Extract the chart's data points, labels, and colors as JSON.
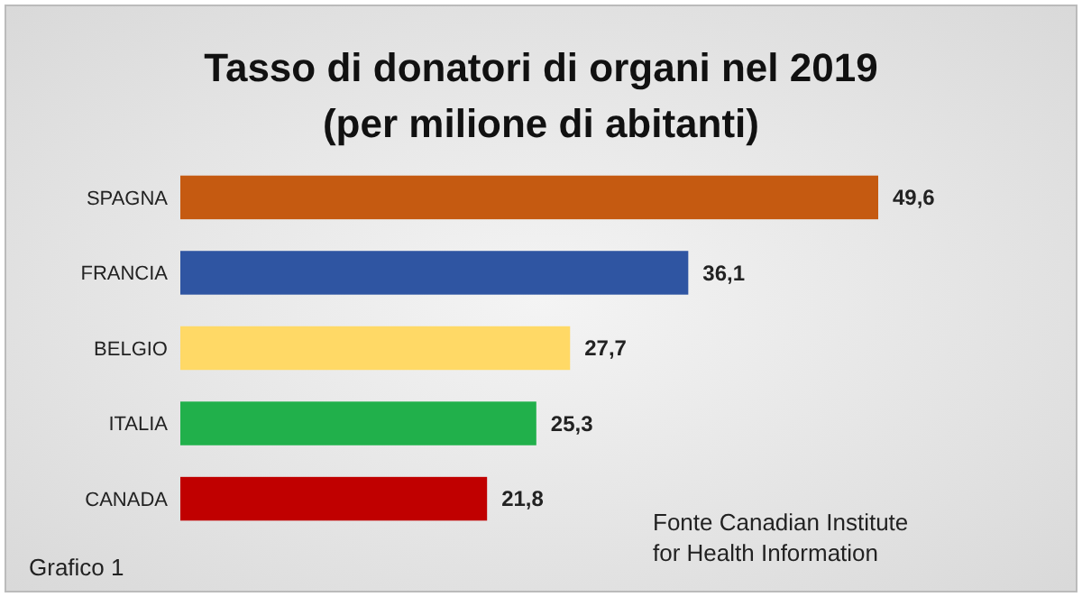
{
  "chart_data": {
    "type": "bar",
    "orientation": "horizontal",
    "title": "Tasso di donatori di organi nel 2019",
    "subtitle": "(per milione di abitanti)",
    "categories": [
      "SPAGNA",
      "FRANCIA",
      "BELGIO",
      "ITALIA",
      "CANADA"
    ],
    "values": [
      49.6,
      36.1,
      27.7,
      25.3,
      21.8
    ],
    "colors": [
      "#c55a11",
      "#2f55a2",
      "#ffd966",
      "#21b04b",
      "#c00000"
    ],
    "value_labels": [
      "49,6",
      "36,1",
      "27,7",
      "25,3",
      "21,8"
    ],
    "annotations": [
      "Fonte Canadian Institute for Health Information",
      "Grafico 1"
    ]
  }
}
